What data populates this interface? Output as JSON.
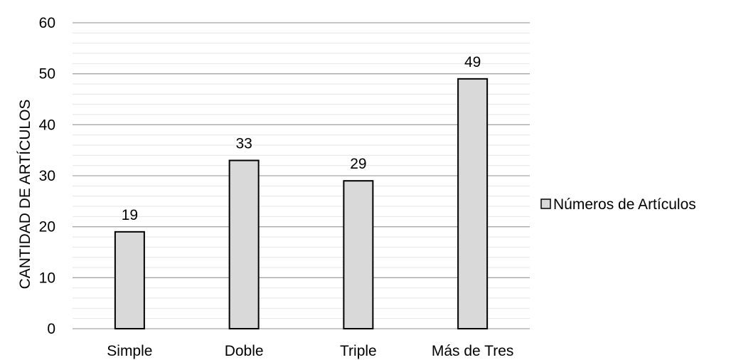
{
  "chart_data": {
    "type": "bar",
    "categories": [
      "Simple",
      "Doble",
      "Triple",
      "Más de Tres"
    ],
    "series": [
      {
        "name": "Números de Artículos",
        "values": [
          19,
          33,
          29,
          49
        ]
      }
    ],
    "ylabel": "CANTIDAD DE ARTÍCULOS",
    "xlabel": "",
    "ylim": [
      0,
      60
    ],
    "yticks": [
      0,
      10,
      20,
      30,
      40,
      50,
      60
    ],
    "grid": "major and minor horizontal",
    "legend": "right",
    "data_labels": true,
    "colors": {
      "bar_fill": "#d9d9d9",
      "bar_stroke": "#000000",
      "major_grid": "#a6a6a6",
      "minor_grid": "#e6e6e6"
    }
  }
}
